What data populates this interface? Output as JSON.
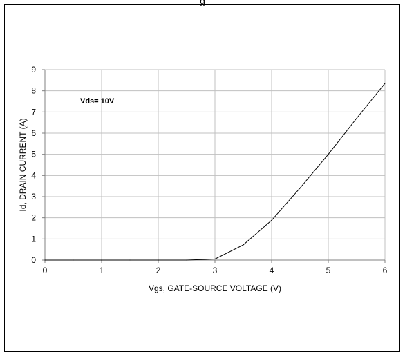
{
  "chart_data": {
    "type": "line",
    "title": "g",
    "xlabel": "Vgs, GATE-SOURCE VOLTAGE (V)",
    "ylabel": "Id, DRAIN CURRENT (A)",
    "xlim": [
      0,
      6
    ],
    "ylim": [
      0,
      9
    ],
    "xticks": [
      "0",
      "1",
      "2",
      "3",
      "4",
      "5",
      "6"
    ],
    "yticks": [
      "0",
      "1",
      "2",
      "3",
      "4",
      "5",
      "6",
      "7",
      "8",
      "9"
    ],
    "grid": true,
    "annotation": "Vds= 10V",
    "series": [
      {
        "x": [
          0,
          0.5,
          1,
          1.5,
          2,
          2.5,
          3,
          3.5,
          4,
          4.5,
          5,
          5.5,
          6
        ],
        "values": [
          0,
          0,
          0,
          0,
          0,
          0,
          0.05,
          0.72,
          1.88,
          3.4,
          5.0,
          6.7,
          8.35
        ]
      }
    ],
    "colors": {
      "line": "#000000",
      "grid": "#c0c0c0",
      "axis": "#808080"
    }
  }
}
